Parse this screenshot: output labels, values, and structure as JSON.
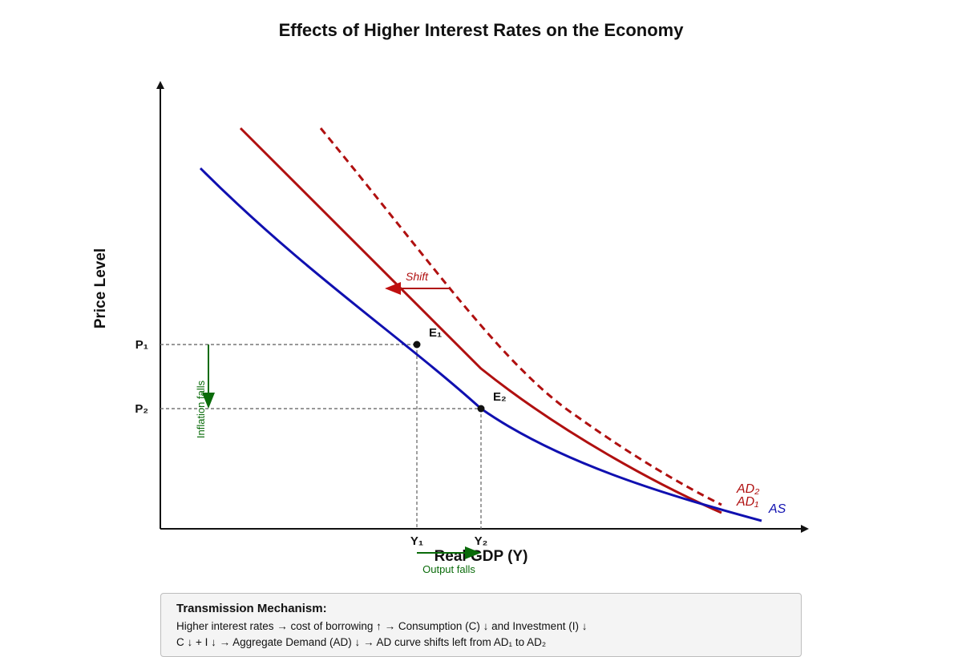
{
  "title": "Effects of Higher Interest Rates on the Economy",
  "axes": {
    "x_label": "Real GDP (Y)",
    "y_label": "Price Level"
  },
  "ticks": {
    "p1": "P₁",
    "p2": "P₂",
    "y1": "Y₁",
    "y2": "Y₂"
  },
  "points": {
    "e1": "E₁",
    "e2": "E₂"
  },
  "curves": {
    "ad2": "AD₂",
    "ad1": "AD₁",
    "as": "AS"
  },
  "annotations": {
    "shift": "Shift",
    "inflation": "Inflation falls",
    "output": "Output falls"
  },
  "colors": {
    "as": "#1010b0",
    "ad": "#b01010",
    "effect": "#0a6b0a"
  },
  "mechanism": {
    "title": "Transmission Mechanism:",
    "line1": "Higher interest rates → cost of borrowing ↑ → Consumption (C) ↓ and Investment (I) ↓",
    "line2": "C ↓ + I ↓ → Aggregate Demand (AD) ↓ → AD curve shifts left from AD₁ to AD₂"
  }
}
